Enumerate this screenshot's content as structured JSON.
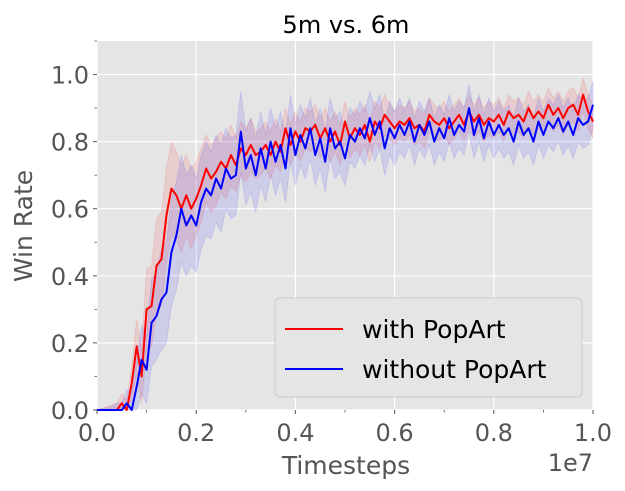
{
  "chart_data": {
    "type": "line",
    "title": "5m vs. 6m",
    "xlabel": "Timesteps",
    "ylabel": "Win Rate",
    "x_offset_label": "1e7",
    "xlim": [
      0.0,
      1.0
    ],
    "ylim": [
      0.0,
      1.1
    ],
    "x_ticks": [
      0.0,
      0.2,
      0.4,
      0.6,
      0.8,
      1.0
    ],
    "x_tick_labels": [
      "0.0",
      "0.2",
      "0.4",
      "0.6",
      "0.8",
      "1.0"
    ],
    "y_ticks": [
      0.0,
      0.2,
      0.4,
      0.6,
      0.8,
      1.0
    ],
    "y_tick_labels": [
      "0.0",
      "0.2",
      "0.4",
      "0.6",
      "0.8",
      "1.0"
    ],
    "grid": true,
    "legend_position": "lower-right",
    "colors": {
      "plot_bg": "#e5e5e5",
      "grid": "#ffffff",
      "spine": "#ffffff"
    },
    "series": [
      {
        "name": "with PopArt",
        "color": "#ff0000",
        "band_color": "#ff0000",
        "points": [
          [
            0.0,
            0.0
          ],
          [
            0.04,
            0.0
          ],
          [
            0.05,
            0.02
          ],
          [
            0.06,
            0.0
          ],
          [
            0.07,
            0.08
          ],
          [
            0.08,
            0.19
          ],
          [
            0.09,
            0.1
          ],
          [
            0.1,
            0.3
          ],
          [
            0.11,
            0.31
          ],
          [
            0.12,
            0.43
          ],
          [
            0.13,
            0.45
          ],
          [
            0.14,
            0.58
          ],
          [
            0.15,
            0.66
          ],
          [
            0.16,
            0.64
          ],
          [
            0.17,
            0.6
          ],
          [
            0.18,
            0.64
          ],
          [
            0.19,
            0.6
          ],
          [
            0.2,
            0.63
          ],
          [
            0.21,
            0.67
          ],
          [
            0.22,
            0.72
          ],
          [
            0.23,
            0.69
          ],
          [
            0.24,
            0.71
          ],
          [
            0.25,
            0.74
          ],
          [
            0.26,
            0.72
          ],
          [
            0.27,
            0.76
          ],
          [
            0.28,
            0.73
          ],
          [
            0.29,
            0.78
          ],
          [
            0.3,
            0.76
          ],
          [
            0.31,
            0.79
          ],
          [
            0.32,
            0.76
          ],
          [
            0.33,
            0.77
          ],
          [
            0.34,
            0.79
          ],
          [
            0.35,
            0.76
          ],
          [
            0.36,
            0.8
          ],
          [
            0.37,
            0.77
          ],
          [
            0.38,
            0.84
          ],
          [
            0.39,
            0.79
          ],
          [
            0.4,
            0.83
          ],
          [
            0.41,
            0.8
          ],
          [
            0.42,
            0.84
          ],
          [
            0.43,
            0.83
          ],
          [
            0.44,
            0.85
          ],
          [
            0.45,
            0.81
          ],
          [
            0.46,
            0.84
          ],
          [
            0.47,
            0.8
          ],
          [
            0.48,
            0.83
          ],
          [
            0.49,
            0.79
          ],
          [
            0.5,
            0.86
          ],
          [
            0.51,
            0.81
          ],
          [
            0.52,
            0.84
          ],
          [
            0.53,
            0.82
          ],
          [
            0.54,
            0.85
          ],
          [
            0.55,
            0.8
          ],
          [
            0.56,
            0.86
          ],
          [
            0.57,
            0.84
          ],
          [
            0.58,
            0.88
          ],
          [
            0.59,
            0.86
          ],
          [
            0.6,
            0.84
          ],
          [
            0.61,
            0.86
          ],
          [
            0.62,
            0.85
          ],
          [
            0.63,
            0.87
          ],
          [
            0.64,
            0.84
          ],
          [
            0.65,
            0.85
          ],
          [
            0.66,
            0.83
          ],
          [
            0.67,
            0.88
          ],
          [
            0.68,
            0.86
          ],
          [
            0.69,
            0.85
          ],
          [
            0.7,
            0.87
          ],
          [
            0.71,
            0.84
          ],
          [
            0.72,
            0.86
          ],
          [
            0.73,
            0.88
          ],
          [
            0.74,
            0.85
          ],
          [
            0.75,
            0.89
          ],
          [
            0.76,
            0.86
          ],
          [
            0.77,
            0.88
          ],
          [
            0.78,
            0.85
          ],
          [
            0.79,
            0.87
          ],
          [
            0.8,
            0.86
          ],
          [
            0.81,
            0.88
          ],
          [
            0.82,
            0.85
          ],
          [
            0.83,
            0.89
          ],
          [
            0.84,
            0.87
          ],
          [
            0.85,
            0.88
          ],
          [
            0.86,
            0.86
          ],
          [
            0.87,
            0.9
          ],
          [
            0.88,
            0.87
          ],
          [
            0.89,
            0.89
          ],
          [
            0.9,
            0.87
          ],
          [
            0.91,
            0.91
          ],
          [
            0.92,
            0.88
          ],
          [
            0.93,
            0.9
          ],
          [
            0.94,
            0.87
          ],
          [
            0.95,
            0.9
          ],
          [
            0.96,
            0.91
          ],
          [
            0.97,
            0.88
          ],
          [
            0.98,
            0.94
          ],
          [
            0.99,
            0.89
          ],
          [
            1.0,
            0.86
          ]
        ],
        "band_width": [
          0.0,
          0.02,
          0.03,
          0.03,
          0.05,
          0.08,
          0.08,
          0.12,
          0.12,
          0.14,
          0.14,
          0.14,
          0.14,
          0.13,
          0.13,
          0.12,
          0.12,
          0.11,
          0.11,
          0.1,
          0.1,
          0.1,
          0.09,
          0.09,
          0.09,
          0.08,
          0.08,
          0.08,
          0.08,
          0.07,
          0.07,
          0.07,
          0.07,
          0.07,
          0.06,
          0.06,
          0.06,
          0.06,
          0.06,
          0.06,
          0.06,
          0.06,
          0.06,
          0.06,
          0.06,
          0.06,
          0.06,
          0.06,
          0.06,
          0.06,
          0.06,
          0.06,
          0.06,
          0.06,
          0.06,
          0.06,
          0.05,
          0.05,
          0.05,
          0.05,
          0.05,
          0.05,
          0.05,
          0.05,
          0.05,
          0.05,
          0.05,
          0.05,
          0.05,
          0.05,
          0.05,
          0.05,
          0.05,
          0.05,
          0.05,
          0.05,
          0.05,
          0.05,
          0.05,
          0.05,
          0.05,
          0.05,
          0.05,
          0.05,
          0.05,
          0.05,
          0.05,
          0.05,
          0.05,
          0.05,
          0.05,
          0.05,
          0.05,
          0.05,
          0.05,
          0.05,
          0.05,
          0.05,
          0.05
        ]
      },
      {
        "name": "without PopArt",
        "color": "#0000ff",
        "band_color": "#0000ff",
        "points": [
          [
            0.0,
            0.0
          ],
          [
            0.03,
            0.0
          ],
          [
            0.04,
            0.0
          ],
          [
            0.05,
            0.0
          ],
          [
            0.06,
            0.02
          ],
          [
            0.07,
            0.0
          ],
          [
            0.08,
            0.07
          ],
          [
            0.09,
            0.15
          ],
          [
            0.1,
            0.12
          ],
          [
            0.11,
            0.26
          ],
          [
            0.12,
            0.28
          ],
          [
            0.13,
            0.33
          ],
          [
            0.14,
            0.35
          ],
          [
            0.15,
            0.47
          ],
          [
            0.16,
            0.52
          ],
          [
            0.17,
            0.6
          ],
          [
            0.18,
            0.55
          ],
          [
            0.19,
            0.58
          ],
          [
            0.2,
            0.55
          ],
          [
            0.21,
            0.62
          ],
          [
            0.22,
            0.66
          ],
          [
            0.23,
            0.64
          ],
          [
            0.24,
            0.69
          ],
          [
            0.25,
            0.66
          ],
          [
            0.26,
            0.72
          ],
          [
            0.27,
            0.69
          ],
          [
            0.28,
            0.7
          ],
          [
            0.29,
            0.83
          ],
          [
            0.3,
            0.72
          ],
          [
            0.31,
            0.76
          ],
          [
            0.32,
            0.7
          ],
          [
            0.33,
            0.78
          ],
          [
            0.34,
            0.72
          ],
          [
            0.35,
            0.8
          ],
          [
            0.36,
            0.74
          ],
          [
            0.37,
            0.79
          ],
          [
            0.38,
            0.72
          ],
          [
            0.39,
            0.84
          ],
          [
            0.4,
            0.76
          ],
          [
            0.41,
            0.82
          ],
          [
            0.42,
            0.78
          ],
          [
            0.43,
            0.84
          ],
          [
            0.44,
            0.76
          ],
          [
            0.45,
            0.81
          ],
          [
            0.46,
            0.74
          ],
          [
            0.47,
            0.84
          ],
          [
            0.48,
            0.78
          ],
          [
            0.49,
            0.8
          ],
          [
            0.5,
            0.75
          ],
          [
            0.51,
            0.82
          ],
          [
            0.52,
            0.8
          ],
          [
            0.53,
            0.84
          ],
          [
            0.54,
            0.81
          ],
          [
            0.55,
            0.87
          ],
          [
            0.56,
            0.82
          ],
          [
            0.57,
            0.86
          ],
          [
            0.58,
            0.78
          ],
          [
            0.59,
            0.84
          ],
          [
            0.6,
            0.81
          ],
          [
            0.61,
            0.85
          ],
          [
            0.62,
            0.82
          ],
          [
            0.63,
            0.86
          ],
          [
            0.64,
            0.8
          ],
          [
            0.65,
            0.85
          ],
          [
            0.66,
            0.82
          ],
          [
            0.67,
            0.86
          ],
          [
            0.68,
            0.8
          ],
          [
            0.69,
            0.84
          ],
          [
            0.7,
            0.81
          ],
          [
            0.71,
            0.87
          ],
          [
            0.72,
            0.82
          ],
          [
            0.73,
            0.85
          ],
          [
            0.74,
            0.83
          ],
          [
            0.75,
            0.9
          ],
          [
            0.76,
            0.82
          ],
          [
            0.77,
            0.87
          ],
          [
            0.78,
            0.81
          ],
          [
            0.79,
            0.86
          ],
          [
            0.8,
            0.82
          ],
          [
            0.81,
            0.85
          ],
          [
            0.82,
            0.82
          ],
          [
            0.83,
            0.84
          ],
          [
            0.84,
            0.8
          ],
          [
            0.85,
            0.86
          ],
          [
            0.86,
            0.82
          ],
          [
            0.87,
            0.84
          ],
          [
            0.88,
            0.8
          ],
          [
            0.89,
            0.86
          ],
          [
            0.9,
            0.82
          ],
          [
            0.91,
            0.86
          ],
          [
            0.92,
            0.84
          ],
          [
            0.93,
            0.87
          ],
          [
            0.94,
            0.83
          ],
          [
            0.95,
            0.86
          ],
          [
            0.96,
            0.82
          ],
          [
            0.97,
            0.87
          ],
          [
            0.98,
            0.85
          ],
          [
            0.99,
            0.86
          ],
          [
            1.0,
            0.91
          ]
        ],
        "band_width": [
          0.0,
          0.01,
          0.02,
          0.02,
          0.04,
          0.05,
          0.08,
          0.1,
          0.1,
          0.13,
          0.13,
          0.15,
          0.15,
          0.16,
          0.16,
          0.16,
          0.15,
          0.15,
          0.14,
          0.14,
          0.14,
          0.13,
          0.13,
          0.13,
          0.12,
          0.12,
          0.12,
          0.12,
          0.11,
          0.11,
          0.11,
          0.11,
          0.1,
          0.1,
          0.1,
          0.1,
          0.1,
          0.1,
          0.09,
          0.09,
          0.09,
          0.09,
          0.09,
          0.09,
          0.09,
          0.09,
          0.09,
          0.09,
          0.08,
          0.08,
          0.08,
          0.08,
          0.08,
          0.08,
          0.08,
          0.08,
          0.08,
          0.08,
          0.08,
          0.08,
          0.07,
          0.07,
          0.07,
          0.07,
          0.07,
          0.07,
          0.07,
          0.07,
          0.07,
          0.07,
          0.07,
          0.07,
          0.07,
          0.07,
          0.07,
          0.07,
          0.07,
          0.07,
          0.07,
          0.07,
          0.07,
          0.07,
          0.07,
          0.07,
          0.07,
          0.07,
          0.07,
          0.07,
          0.07,
          0.07,
          0.07,
          0.07,
          0.07,
          0.07,
          0.07,
          0.07,
          0.07,
          0.07,
          0.07
        ]
      }
    ]
  }
}
